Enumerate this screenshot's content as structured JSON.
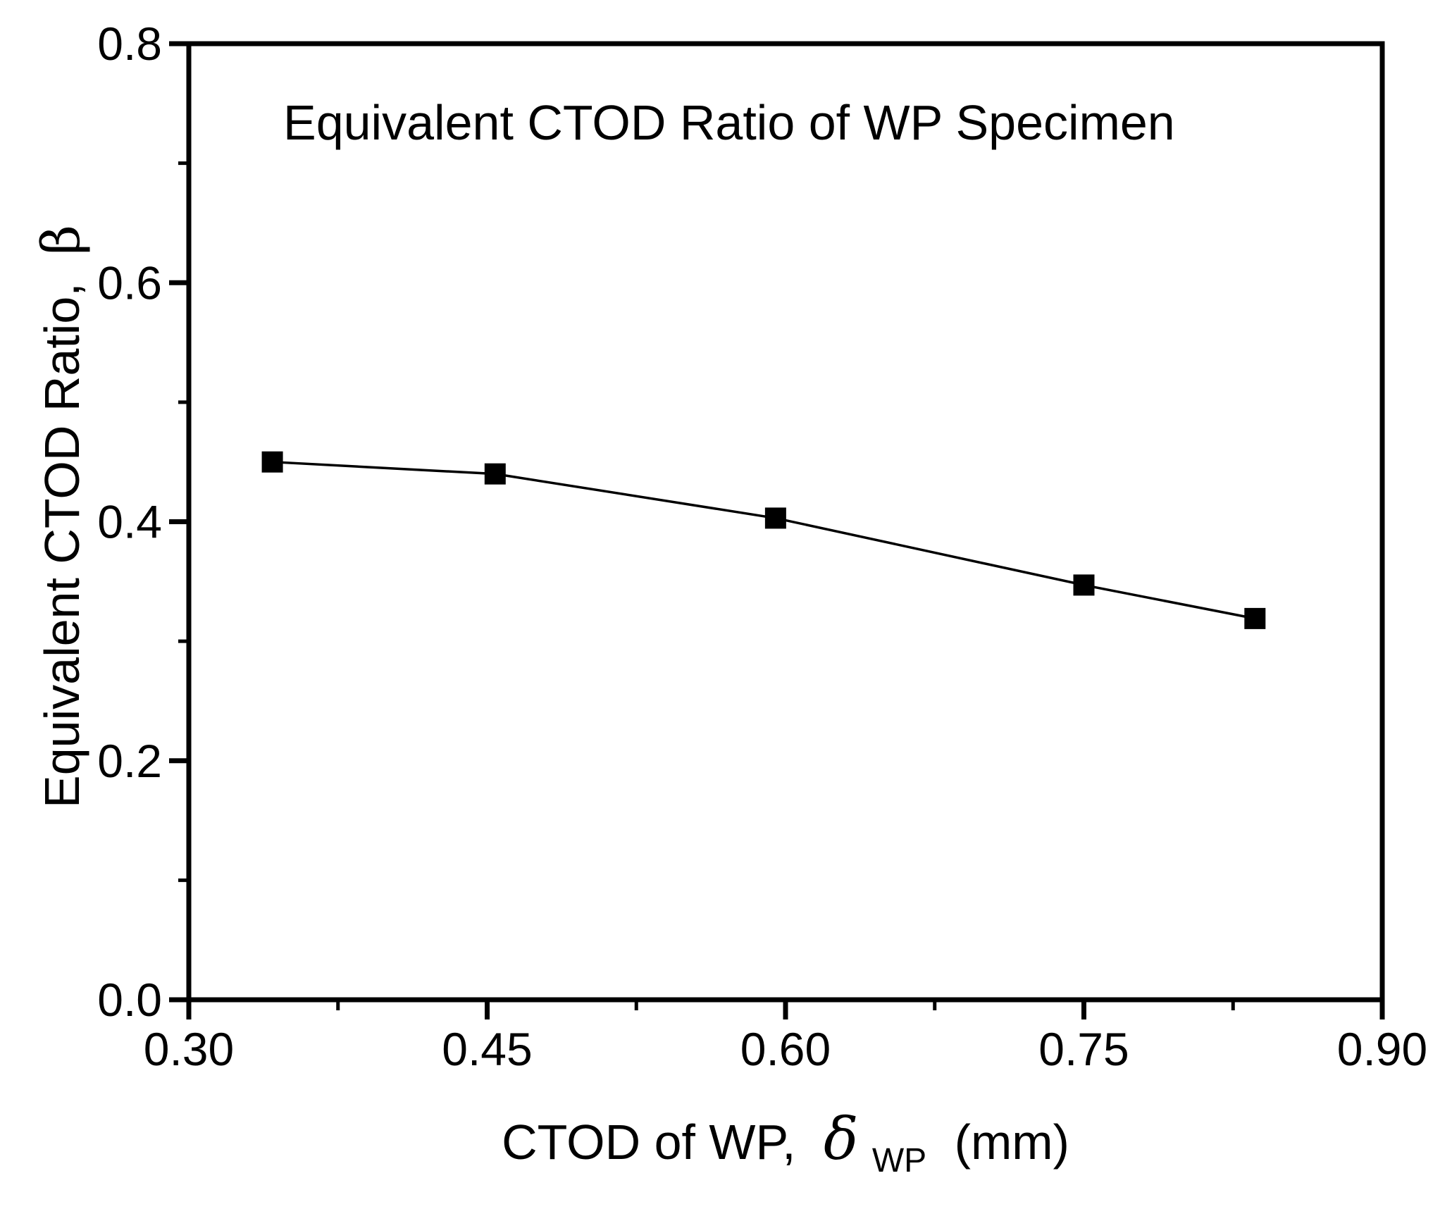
{
  "chart_data": {
    "type": "line",
    "title": "Equivalent CTOD Ratio of WP Specimen",
    "xlabel": {
      "prefix": "CTOD of WP,",
      "symbol": "δ",
      "subscript": "WP",
      "suffix": "(mm)"
    },
    "ylabel": {
      "prefix": "Equivalent CTOD Ratio,",
      "symbol": "β"
    },
    "xlim": [
      0.3,
      0.9
    ],
    "ylim": [
      0.0,
      0.8
    ],
    "x_ticks": {
      "major": [
        0.3,
        0.45,
        0.6,
        0.75,
        0.9
      ],
      "labels": [
        "0.30",
        "0.45",
        "0.60",
        "0.75",
        "0.90"
      ],
      "minor": [
        0.375,
        0.525,
        0.675,
        0.825
      ]
    },
    "y_ticks": {
      "major": [
        0.0,
        0.2,
        0.4,
        0.6,
        0.8
      ],
      "labels": [
        "0.0",
        "0.2",
        "0.4",
        "0.6",
        "0.8"
      ],
      "minor": [
        0.1,
        0.3,
        0.5,
        0.7
      ]
    },
    "grid": false,
    "legend": "none",
    "frame": "full-box",
    "series": [
      {
        "name": "Equivalent CTOD ratio of WP specimen",
        "style": "line+marker",
        "marker": "filled-square",
        "color": "#000000",
        "points": [
          [
            0.342,
            0.45
          ],
          [
            0.454,
            0.44
          ],
          [
            0.595,
            0.403
          ],
          [
            0.75,
            0.347
          ],
          [
            0.836,
            0.319
          ]
        ]
      }
    ]
  },
  "colors": {
    "background": "#ffffff",
    "foreground": "#000000"
  }
}
